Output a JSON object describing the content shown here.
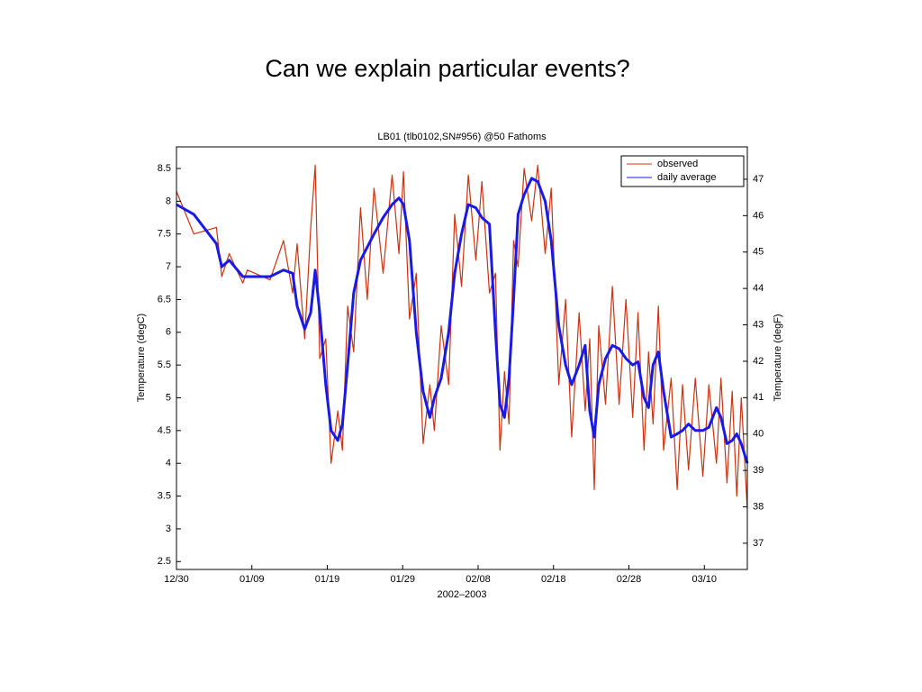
{
  "slide_title": "Can we explain particular events?",
  "chart_data": {
    "type": "line",
    "title": "LB01 (tlb0102,SN#956) @50 Fathoms",
    "xlabel": "2002–2003",
    "ylabel": "Temperature (degC)",
    "y2label": "Temperature (degF)",
    "x": [
      0,
      2.3,
      5.3,
      6,
      7,
      8.8,
      9.4,
      12.4,
      14.2,
      15.4,
      16,
      17,
      17.8,
      18.4,
      19,
      19.8,
      20.5,
      21.4,
      22,
      22.7,
      23.5,
      24.4,
      25.3,
      26.2,
      27.4,
      28.6,
      29.5,
      30.1,
      30.9,
      31.8,
      32.7,
      33.6,
      34.2,
      35.1,
      36.1,
      36.9,
      37.8,
      38.7,
      39.7,
      40.5,
      41.5,
      42.3,
      42.9,
      43.5,
      44.1,
      44.7,
      45.3,
      46.1,
      47.1,
      47.9,
      48.9,
      49.7,
      50.7,
      51.6,
      52.4,
      53.4,
      54.2,
      54.8,
      55.4,
      56,
      56.9,
      57.8,
      58.7,
      59.6,
      60.5,
      61.2,
      62,
      62.6,
      63.2,
      63.9,
      64.6,
      65.6,
      66.4,
      67.1,
      67.9,
      68.8,
      69.8,
      70.6,
      71.6,
      72.2,
      73,
      73.7,
      74.3,
      74.9,
      75.7
    ],
    "series": [
      {
        "name": "observed",
        "color": "#cc3311",
        "values": [
          8.15,
          7.5,
          7.6,
          6.85,
          7.2,
          6.75,
          6.95,
          6.8,
          7.4,
          6.6,
          7.35,
          5.9,
          7.6,
          8.55,
          5.6,
          5.9,
          4.0,
          4.8,
          4.2,
          6.4,
          5.7,
          7.9,
          6.5,
          8.2,
          6.9,
          8.4,
          7.2,
          8.45,
          6.2,
          6.9,
          4.3,
          5.2,
          4.5,
          6.1,
          5.2,
          7.8,
          6.7,
          8.4,
          7.1,
          8.3,
          6.6,
          6.9,
          4.2,
          5.4,
          4.6,
          7.4,
          7.0,
          8.5,
          7.7,
          8.55,
          7.2,
          8.2,
          5.2,
          6.5,
          4.4,
          6.3,
          4.8,
          5.9,
          3.6,
          6.1,
          4.9,
          6.7,
          4.9,
          6.5,
          4.7,
          6.3,
          4.2,
          5.7,
          4.6,
          6.4,
          4.2,
          5.3,
          3.6,
          5.2,
          3.9,
          5.3,
          3.8,
          5.2,
          4.0,
          5.3,
          3.7,
          5.1,
          3.5,
          5.0,
          3.3
        ]
      },
      {
        "name": "daily average",
        "color": "#1a1ae6",
        "values": [
          7.95,
          7.8,
          7.35,
          7.0,
          7.1,
          6.85,
          6.85,
          6.85,
          6.95,
          6.9,
          6.4,
          6.05,
          6.3,
          6.95,
          6.3,
          5.2,
          4.5,
          4.35,
          4.6,
          5.5,
          6.6,
          7.1,
          7.3,
          7.5,
          7.75,
          7.95,
          8.05,
          7.95,
          7.4,
          6.0,
          5.1,
          4.7,
          5.0,
          5.3,
          6.0,
          6.9,
          7.5,
          7.95,
          7.9,
          7.75,
          7.65,
          6.0,
          4.9,
          4.7,
          5.3,
          6.5,
          7.8,
          8.1,
          8.35,
          8.3,
          8.0,
          7.4,
          6.1,
          5.5,
          5.2,
          5.5,
          5.8,
          4.8,
          4.4,
          5.2,
          5.6,
          5.8,
          5.75,
          5.6,
          5.5,
          5.55,
          5.0,
          4.85,
          5.5,
          5.7,
          5.1,
          4.4,
          4.45,
          4.5,
          4.6,
          4.5,
          4.5,
          4.55,
          4.85,
          4.7,
          4.3,
          4.35,
          4.45,
          4.3,
          4.0
        ]
      }
    ],
    "xlim": [
      0,
      75.7
    ],
    "xticks": [
      {
        "value": 0,
        "label": "12/30"
      },
      {
        "value": 10,
        "label": "01/09"
      },
      {
        "value": 20,
        "label": "01/19"
      },
      {
        "value": 30,
        "label": "01/29"
      },
      {
        "value": 40,
        "label": "02/08"
      },
      {
        "value": 50,
        "label": "02/18"
      },
      {
        "value": 60,
        "label": "02/28"
      },
      {
        "value": 70,
        "label": "03/10"
      }
    ],
    "ylim": [
      2.38,
      8.83
    ],
    "yticks": [
      2.5,
      3,
      3.5,
      4,
      4.5,
      5,
      5.5,
      6,
      6.5,
      7,
      7.5,
      8,
      8.5
    ],
    "y2lim": [
      36.28,
      47.89
    ],
    "y2ticks": [
      37,
      38,
      39,
      40,
      41,
      42,
      43,
      44,
      45,
      46,
      47
    ],
    "legend": "upper right"
  }
}
